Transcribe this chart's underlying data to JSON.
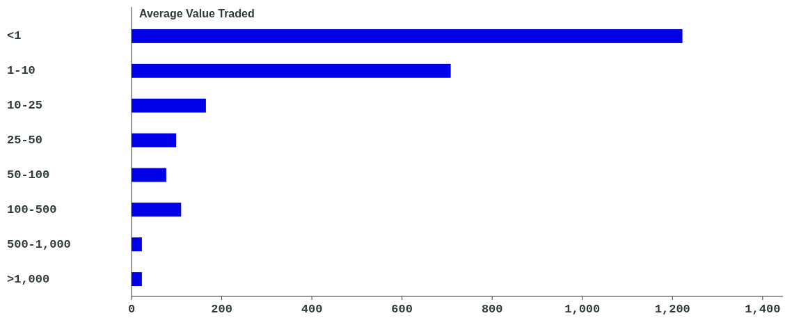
{
  "chart_data": {
    "type": "bar",
    "orientation": "horizontal",
    "title": "Average Value Traded",
    "categories": [
      "<1",
      "1-10",
      "10-25",
      "25-50",
      "50-100",
      "100-500",
      "500-1,000",
      ">1,000"
    ],
    "values": [
      1222,
      708,
      165,
      99,
      77,
      110,
      23,
      23
    ],
    "color": "#0000e6",
    "xlim": [
      0,
      1445
    ],
    "xticks": [
      0,
      200,
      400,
      600,
      800,
      {
        "value": 1000,
        "label": "1,000"
      },
      {
        "value": 1200,
        "label": "1,200"
      },
      {
        "value": 1400,
        "label": "1,400"
      }
    ],
    "grid": false
  }
}
